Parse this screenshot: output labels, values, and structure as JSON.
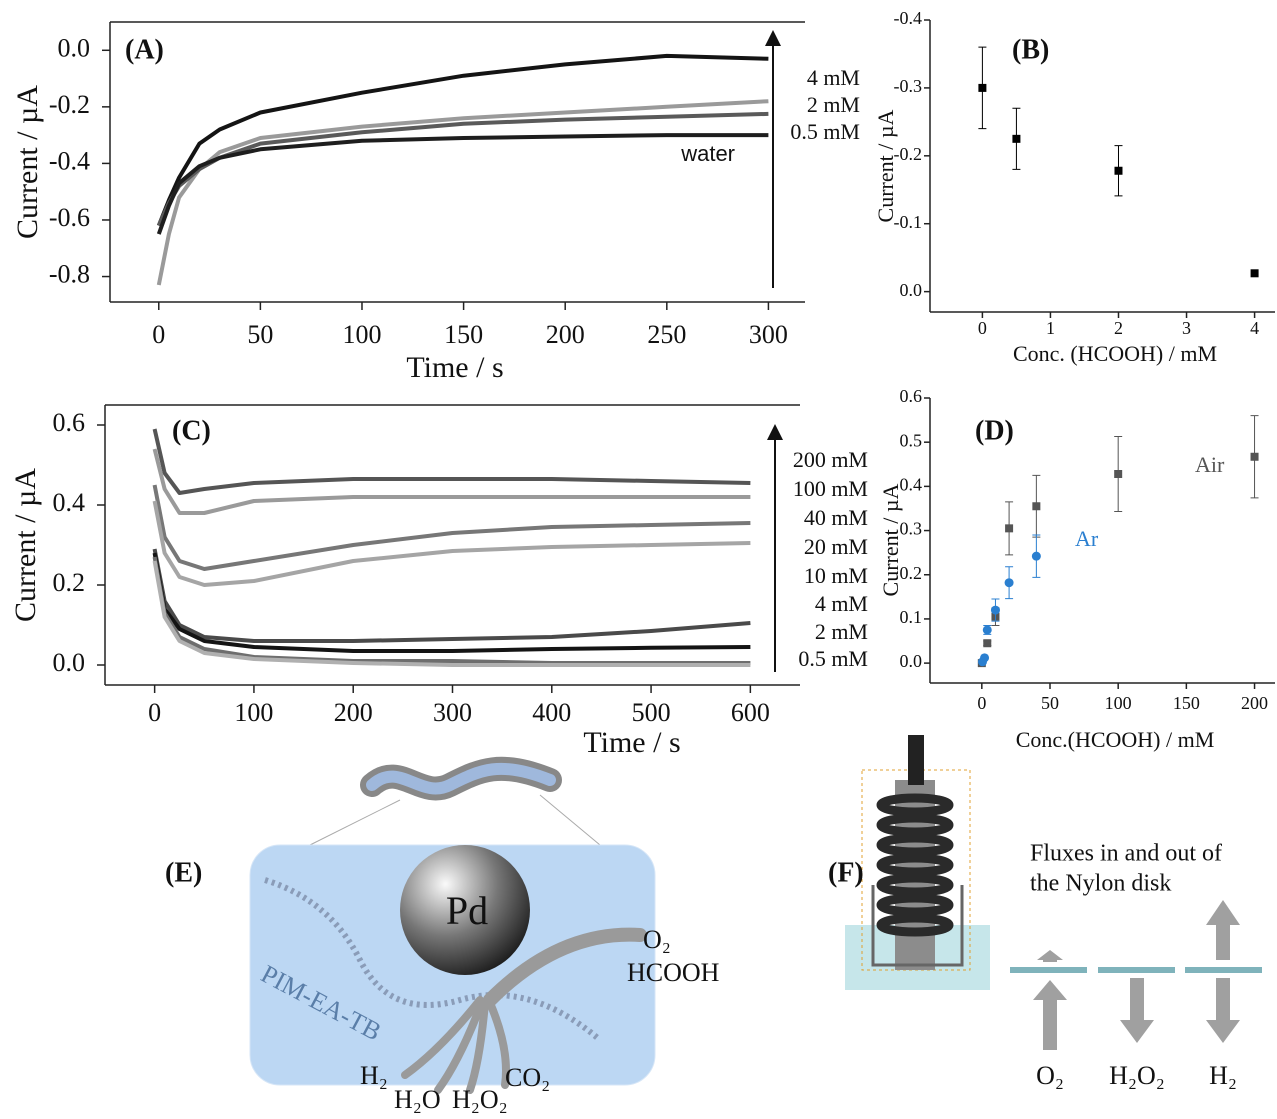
{
  "chart_data": [
    {
      "type": "line",
      "panel_label": "(A)",
      "x_label": "Time / s",
      "y_label": "Current / µA",
      "annotation": "water",
      "x": [
        0,
        5,
        10,
        20,
        30,
        50,
        100,
        150,
        200,
        250,
        300
      ],
      "series": [
        {
          "name": "4 mM",
          "color": "#141414",
          "values": [
            -0.62,
            -0.53,
            -0.45,
            -0.33,
            -0.28,
            -0.22,
            -0.15,
            -0.09,
            -0.05,
            -0.02,
            -0.03
          ]
        },
        {
          "name": "2 mM",
          "color": "#9a9a9a",
          "values": [
            -0.83,
            -0.65,
            -0.52,
            -0.42,
            -0.36,
            -0.31,
            -0.27,
            -0.24,
            -0.22,
            -0.2,
            -0.18
          ]
        },
        {
          "name": "0.5 mM",
          "color": "#5a5a5a",
          "values": [
            -0.62,
            -0.54,
            -0.48,
            -0.42,
            -0.38,
            -0.33,
            -0.29,
            -0.26,
            -0.245,
            -0.235,
            -0.225
          ]
        },
        {
          "name": "water",
          "color": "#1e1e1e",
          "values": [
            -0.65,
            -0.55,
            -0.47,
            -0.41,
            -0.38,
            -0.35,
            -0.32,
            -0.31,
            -0.305,
            -0.3,
            -0.3
          ]
        }
      ],
      "xlim": [
        -24,
        318
      ],
      "ylim": [
        -0.89,
        0.1
      ],
      "xticks": [
        0,
        50,
        100,
        150,
        200,
        250,
        300
      ],
      "yticks": [
        {
          "value": 0,
          "label": "0.0"
        },
        -0.2,
        -0.4,
        -0.6,
        -0.8
      ]
    },
    {
      "type": "scatter",
      "panel_label": "(B)",
      "x_label": "Conc. (HCOOH) / mM",
      "y_label": "Current / µA",
      "series": [
        {
          "color": "#000000",
          "marker": "square",
          "x": [
            0,
            0.5,
            2,
            4
          ],
          "values": [
            -0.3,
            -0.225,
            -0.178,
            -0.027
          ],
          "errors": [
            0.06,
            0.045,
            0.037,
            0
          ]
        }
      ],
      "xlim": [
        -0.77,
        4.3
      ],
      "ylim": [
        0.03,
        -0.4
      ],
      "xticks": [
        0,
        1,
        2,
        3,
        4
      ],
      "yticks": [
        -0.4,
        -0.3,
        -0.2,
        -0.1,
        {
          "value": 0,
          "label": "0.0"
        }
      ]
    },
    {
      "type": "line",
      "panel_label": "(C)",
      "x_label": "Time / s",
      "y_label": "Current / µA",
      "x": [
        0,
        10,
        25,
        50,
        100,
        200,
        300,
        400,
        500,
        600
      ],
      "series": [
        {
          "name": "200 mM",
          "color": "#555555",
          "values": [
            0.59,
            0.48,
            0.43,
            0.44,
            0.455,
            0.465,
            0.465,
            0.465,
            0.46,
            0.455
          ]
        },
        {
          "name": "100 mM",
          "color": "#9a9a9a",
          "values": [
            0.54,
            0.44,
            0.38,
            0.38,
            0.41,
            0.42,
            0.42,
            0.42,
            0.42,
            0.42
          ]
        },
        {
          "name": "40 mM",
          "color": "#777777",
          "values": [
            0.45,
            0.32,
            0.26,
            0.24,
            0.26,
            0.3,
            0.33,
            0.345,
            0.35,
            0.355
          ]
        },
        {
          "name": "20 mM",
          "color": "#a5a5a5",
          "values": [
            0.41,
            0.28,
            0.22,
            0.2,
            0.21,
            0.26,
            0.285,
            0.295,
            0.3,
            0.305
          ]
        },
        {
          "name": "10 mM",
          "color": "#4a4a4a",
          "values": [
            0.29,
            0.16,
            0.1,
            0.07,
            0.06,
            0.06,
            0.065,
            0.07,
            0.085,
            0.105
          ]
        },
        {
          "name": "4 mM",
          "color": "#141414",
          "values": [
            0.28,
            0.14,
            0.09,
            0.06,
            0.045,
            0.035,
            0.035,
            0.04,
            0.043,
            0.045
          ]
        },
        {
          "name": "2 mM",
          "color": "#6e6e6e",
          "values": [
            0.27,
            0.13,
            0.07,
            0.04,
            0.02,
            0.01,
            0.01,
            0.005,
            0.005,
            0.005
          ]
        },
        {
          "name": "0.5 mM",
          "color": "#b0b0b0",
          "values": [
            0.26,
            0.12,
            0.06,
            0.03,
            0.015,
            0.005,
            0,
            0,
            0,
            0
          ]
        }
      ],
      "xlim": [
        -50,
        650
      ],
      "ylim": [
        -0.05,
        0.65
      ],
      "xticks": [
        0,
        100,
        200,
        300,
        400,
        500,
        600
      ],
      "yticks": [
        {
          "value": 0,
          "label": "0.0"
        },
        0.2,
        0.4,
        0.6
      ]
    },
    {
      "type": "scatter",
      "panel_label": "(D)",
      "x_label": "Conc.(HCOOH) / mM",
      "y_label": "Current / µA",
      "series": [
        {
          "name": "Air",
          "color": "#555555",
          "marker": "square",
          "x": [
            0,
            4,
            10,
            20,
            40,
            100,
            200
          ],
          "values": [
            0,
            0.045,
            0.105,
            0.305,
            0.355,
            0.428,
            0.467
          ],
          "errors": [
            0,
            0.005,
            0.02,
            0.06,
            0.07,
            0.085,
            0.093
          ]
        },
        {
          "name": "Ar",
          "color": "#2a7fd0",
          "marker": "circle",
          "x": [
            0.5,
            2,
            4,
            10,
            20,
            40
          ],
          "values": [
            0.003,
            0.012,
            0.075,
            0.12,
            0.182,
            0.242
          ],
          "errors": [
            0,
            0,
            0.01,
            0.025,
            0.036,
            0.048
          ]
        }
      ],
      "xlim": [
        -38,
        215
      ],
      "ylim": [
        -0.045,
        0.6
      ],
      "xticks": [
        0,
        50,
        100,
        150,
        200
      ],
      "yticks": [
        {
          "value": 0,
          "label": "0.0"
        },
        0.1,
        0.2,
        0.3,
        0.4,
        0.5,
        0.6
      ]
    }
  ],
  "diagrams": {
    "e": {
      "label": "(E)",
      "particle": "Pd",
      "polymer": "PIM-EA-TB",
      "inputs": [
        "O₂",
        "HCOOH"
      ],
      "products": [
        "H₂",
        "H₂O",
        "H₂O₂",
        "CO₂"
      ]
    },
    "f": {
      "label": "(F)",
      "caption": [
        "Fluxes in and out of",
        "the Nylon disk"
      ],
      "fluxes": [
        "O₂",
        "H₂O₂",
        "H₂"
      ]
    }
  }
}
